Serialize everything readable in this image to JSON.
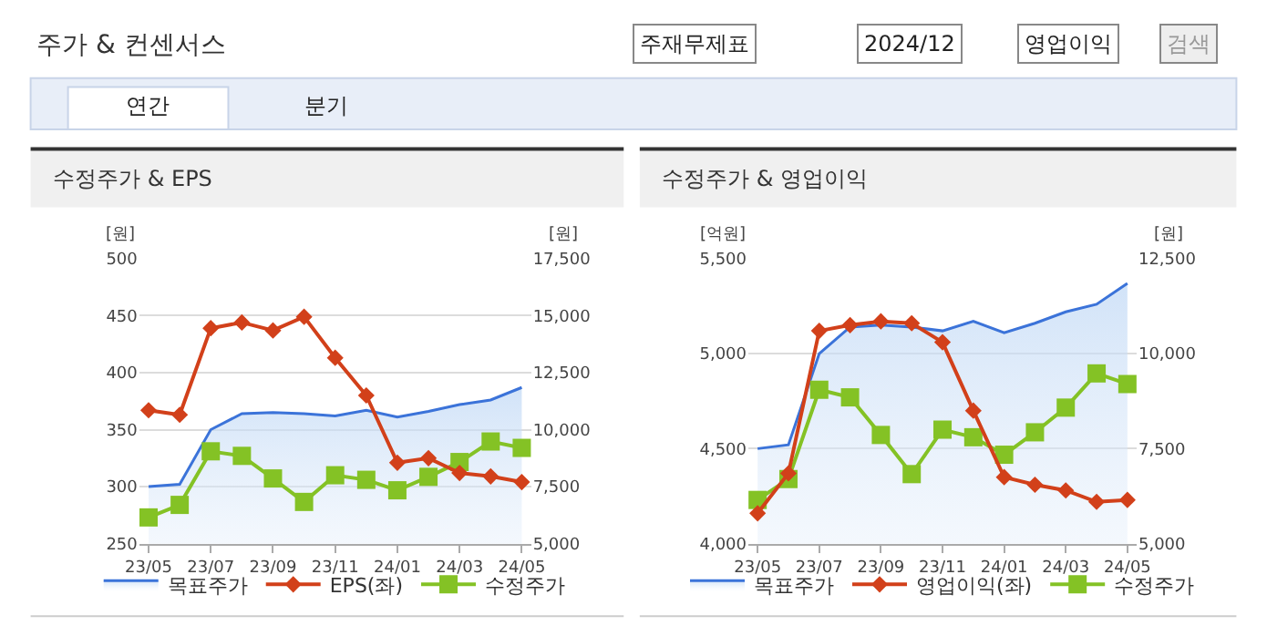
{
  "chart_data": [
    {
      "type": "other",
      "title": "주가 & 컨센서스",
      "annotations": [
        "주재무제표",
        "2024/12",
        "영업이익",
        "검색",
        "연간",
        "분기"
      ]
    },
    {
      "type": "line",
      "title": "수정주가 & EPS",
      "ylabel": "[원]",
      "y2label": "[원]",
      "categories": [
        "23/05",
        null,
        "23/07",
        null,
        "23/09",
        null,
        "23/11",
        null,
        "24/01",
        null,
        "24/03",
        null,
        "24/05"
      ],
      "series": [
        {
          "name": "목표주가",
          "type": "area",
          "axis": "y2",
          "color": "#3b73d9",
          "marker": "none",
          "values": [
            7500,
            7600,
            10000,
            10700,
            10750,
            10700,
            10600,
            10850,
            10550,
            10800,
            11100,
            11300,
            11850
          ]
        },
        {
          "name": "EPS(좌)",
          "type": "line",
          "color": "#d2401a",
          "marker": "diamond",
          "values": [
            367,
            363,
            439,
            444,
            437,
            449,
            413,
            380,
            321,
            325,
            312,
            309,
            304
          ]
        },
        {
          "name": "수정주가",
          "type": "line",
          "axis": "y2",
          "color": "#84c225",
          "marker": "square",
          "values": [
            6150,
            6700,
            9050,
            8850,
            7860,
            6830,
            8000,
            7800,
            7340,
            7930,
            8580,
            9480,
            9200
          ]
        }
      ],
      "ylim": [
        250,
        500
      ],
      "yticks": [
        250,
        300,
        350,
        400,
        450,
        500
      ],
      "y2lim": [
        5000,
        17500
      ],
      "y2ticks": [
        {
          "value": 5000,
          "label": "5,000"
        },
        {
          "value": 7500,
          "label": "7,500"
        },
        {
          "value": 10000,
          "label": "10,000"
        },
        {
          "value": 12500,
          "label": "12,500"
        },
        {
          "value": 15000,
          "label": "15,000"
        },
        {
          "value": 17500,
          "label": "17,500"
        }
      ],
      "grid": "y",
      "legend": "bottom"
    },
    {
      "type": "line",
      "title": "수정주가 & 영업이익",
      "ylabel": "[억원]",
      "y2label": "[원]",
      "categories": [
        "23/05",
        null,
        "23/07",
        null,
        "23/09",
        null,
        "23/11",
        null,
        "24/01",
        null,
        "24/03",
        null,
        "24/05"
      ],
      "series": [
        {
          "name": "목표주가",
          "type": "area",
          "axis": "y2",
          "color": "#3b73d9",
          "marker": "none",
          "values": [
            7500,
            7600,
            10000,
            10700,
            10750,
            10700,
            10600,
            10850,
            10550,
            10800,
            11100,
            11300,
            11850
          ]
        },
        {
          "name": "영업이익(좌)",
          "type": "line",
          "color": "#d2401a",
          "marker": "diamond",
          "values": [
            4160,
            4370,
            5120,
            5150,
            5170,
            5160,
            5060,
            4700,
            4350,
            4310,
            4280,
            4220,
            4230
          ]
        },
        {
          "name": "수정주가",
          "type": "line",
          "axis": "y2",
          "color": "#84c225",
          "marker": "square",
          "values": [
            6150,
            6700,
            9050,
            8850,
            7860,
            6830,
            8000,
            7800,
            7340,
            7930,
            8580,
            9480,
            9200
          ]
        }
      ],
      "ylim": [
        4000,
        5500
      ],
      "yticks": [
        {
          "value": 4000,
          "label": "4,000"
        },
        {
          "value": 4500,
          "label": "4,500"
        },
        {
          "value": 5000,
          "label": "5,000"
        },
        {
          "value": 5500,
          "label": "5,500"
        }
      ],
      "y2lim": [
        5000,
        12500
      ],
      "y2ticks": [
        {
          "value": 5000,
          "label": "5,000"
        },
        {
          "value": 7500,
          "label": "7,500"
        },
        {
          "value": 10000,
          "label": "10,000"
        },
        {
          "value": 12500,
          "label": "12,500"
        }
      ],
      "grid": "y",
      "legend": "bottom"
    }
  ]
}
